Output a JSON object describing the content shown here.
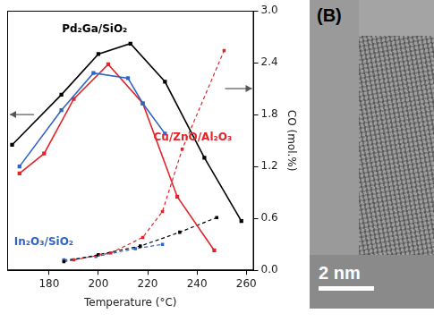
{
  "chart_data": {
    "type": "line",
    "x_label": "Temperature (°C)",
    "y_label": "CO (mol.%)",
    "xlim": [
      163,
      263
    ],
    "xticks": [
      180,
      200,
      220,
      240,
      260
    ],
    "ylim": [
      0,
      3.0
    ],
    "yticks": [
      {
        "value": 0,
        "label": "0.0"
      },
      {
        "value": 0.6,
        "label": "0.6"
      },
      {
        "value": 1.2,
        "label": "1.2"
      },
      {
        "value": 1.8,
        "label": "1.8"
      },
      {
        "value": 2.4,
        "label": "2.4"
      },
      {
        "value": 3.0,
        "label": "3.0"
      }
    ],
    "grid": false,
    "series": [
      {
        "name": "Pd₂Ga/SiO₂",
        "color": "#000000",
        "line_style": "solid",
        "marker": "square",
        "x": [
          165,
          185,
          200,
          213,
          227,
          243,
          258
        ],
        "values": [
          1.45,
          2.03,
          2.5,
          2.62,
          2.18,
          1.3,
          0.57
        ]
      },
      {
        "name": "In₂O₃/SiO₂",
        "color": "#2f66c4",
        "line_style": "solid",
        "marker": "square",
        "x": [
          168,
          185,
          198,
          212,
          218,
          227
        ],
        "values": [
          1.2,
          1.85,
          2.28,
          2.22,
          1.93,
          1.58
        ]
      },
      {
        "name": "Cu/ZnO/Al₂O₃",
        "color": "#e3242b",
        "line_style": "solid",
        "marker": "square",
        "x": [
          168,
          178,
          190,
          204,
          218,
          232,
          247
        ],
        "values": [
          1.12,
          1.35,
          1.98,
          2.38,
          1.93,
          0.85,
          0.23
        ]
      },
      {
        "color": "#e3242b",
        "line_style": "dashed",
        "marker": "square",
        "x": [
          190,
          205,
          218,
          226,
          234,
          251
        ],
        "values": [
          0.12,
          0.2,
          0.38,
          0.68,
          1.4,
          2.54
        ]
      },
      {
        "color": "#000000",
        "line_style": "dashed",
        "marker": "square",
        "x": [
          186,
          200,
          217,
          233,
          248
        ],
        "values": [
          0.1,
          0.18,
          0.28,
          0.44,
          0.61
        ]
      },
      {
        "color": "#2f66c4",
        "line_style": "dashed",
        "marker": "square",
        "x": [
          186,
          199,
          215,
          226
        ],
        "values": [
          0.12,
          0.16,
          0.25,
          0.3
        ]
      }
    ]
  },
  "panel_b": {
    "label": "(B)",
    "scale_bar": "2 nm"
  }
}
